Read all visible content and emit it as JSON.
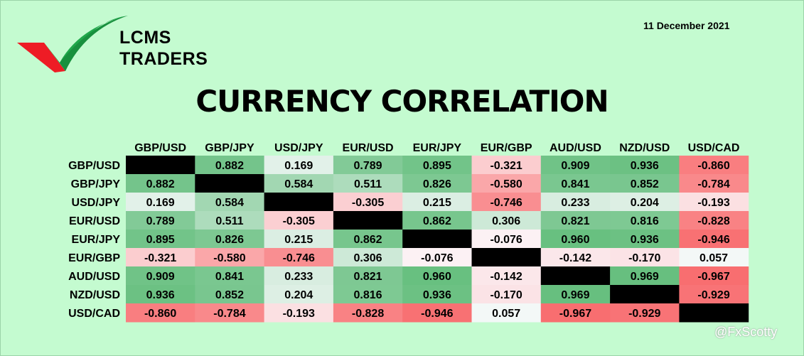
{
  "brand": {
    "line1": "LCMS",
    "line2": "TRADERS",
    "logo_icon": "checkmark-swoosh-icon"
  },
  "date": "11 December 2021",
  "title": "CURRENCY CORRELATION",
  "watermark": "@FxScotty",
  "colors": {
    "background": "#c4fbd0",
    "positive": "#62bd7b",
    "negative": "#f8696b",
    "neutral": "#fcfcff",
    "diagonal": "#000000"
  },
  "chart_data": {
    "type": "heatmap",
    "pairs": [
      "GBP/USD",
      "GBP/JPY",
      "USD/JPY",
      "EUR/USD",
      "EUR/JPY",
      "EUR/GBP",
      "AUD/USD",
      "NZD/USD",
      "USD/CAD"
    ],
    "values": [
      [
        null,
        0.882,
        0.169,
        0.789,
        0.895,
        -0.321,
        0.909,
        0.936,
        -0.86
      ],
      [
        0.882,
        null,
        0.584,
        0.511,
        0.826,
        -0.58,
        0.841,
        0.852,
        -0.784
      ],
      [
        0.169,
        0.584,
        null,
        -0.305,
        0.215,
        -0.746,
        0.233,
        0.204,
        -0.193
      ],
      [
        0.789,
        0.511,
        -0.305,
        null,
        0.862,
        0.306,
        0.821,
        0.816,
        -0.828
      ],
      [
        0.895,
        0.826,
        0.215,
        0.862,
        null,
        -0.076,
        0.96,
        0.936,
        -0.946
      ],
      [
        -0.321,
        -0.58,
        -0.746,
        0.306,
        -0.076,
        null,
        -0.142,
        -0.17,
        0.057
      ],
      [
        0.909,
        0.841,
        0.233,
        0.821,
        0.96,
        -0.142,
        null,
        0.969,
        -0.967
      ],
      [
        0.936,
        0.852,
        0.204,
        0.816,
        0.936,
        -0.17,
        0.969,
        null,
        -0.929
      ],
      [
        -0.86,
        -0.784,
        -0.193,
        -0.828,
        -0.946,
        0.057,
        -0.967,
        -0.929,
        null
      ]
    ]
  }
}
